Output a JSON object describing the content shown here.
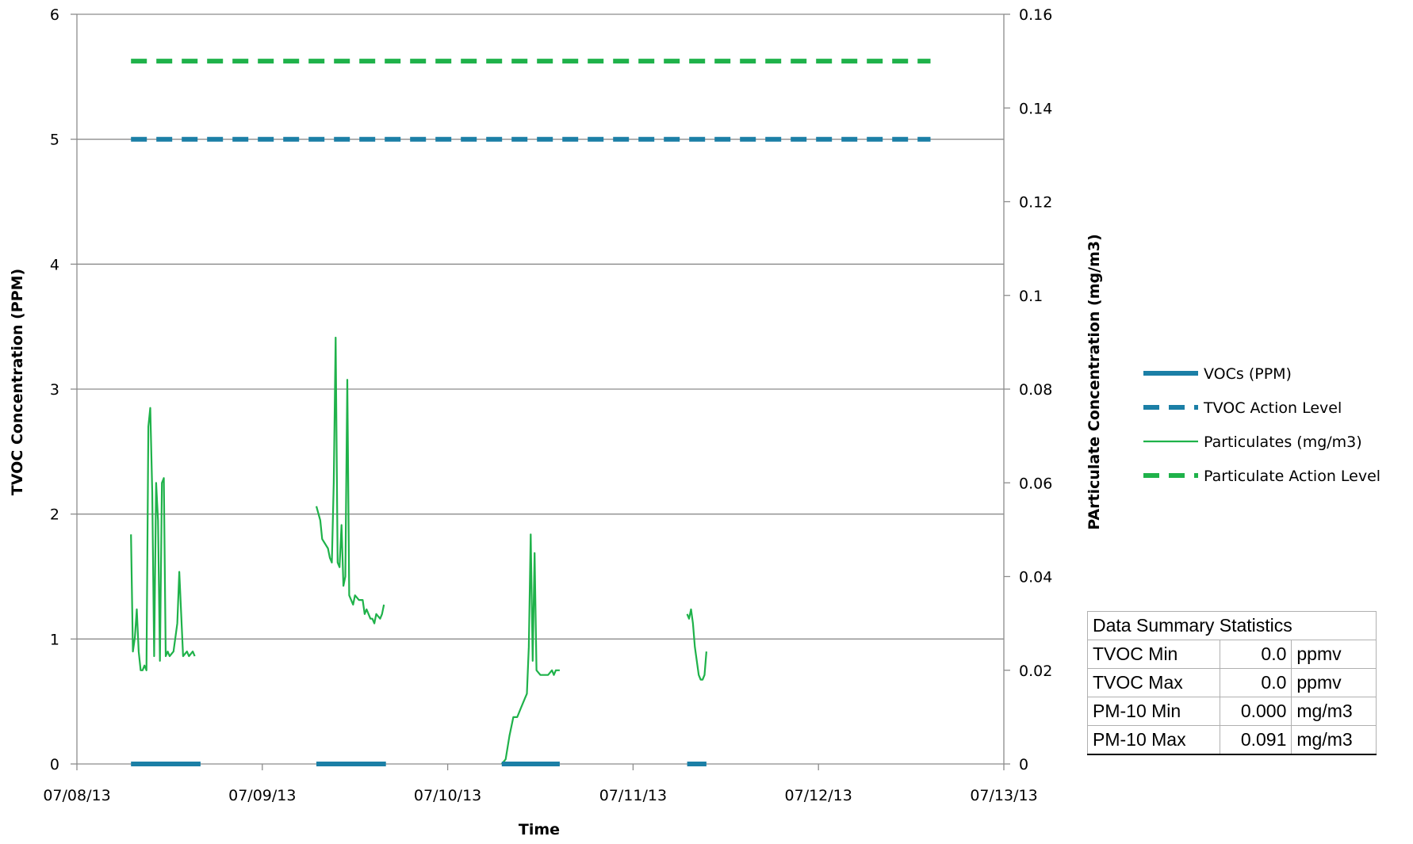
{
  "chart_data": {
    "type": "line",
    "xlabel": "Time",
    "ylabel_left": "TVOC Concentration (PPM)",
    "ylabel_right": "PArticulate Concentration (mg/m3)",
    "x_range": [
      "07/08/13",
      "07/13/13"
    ],
    "x_tick_labels": [
      "07/08/13",
      "07/09/13",
      "07/10/13",
      "07/11/13",
      "07/12/13",
      "07/13/13"
    ],
    "y_left_range": [
      0,
      6
    ],
    "y_left_ticks": [
      "0",
      "1",
      "2",
      "3",
      "4",
      "5",
      "6"
    ],
    "y_right_range": [
      0,
      0.16
    ],
    "y_right_ticks": [
      "0",
      "0.02",
      "0.04",
      "0.06",
      "0.08",
      "0.1",
      "0.12",
      "0.14",
      "0.16"
    ],
    "grid": "horizontal",
    "legend_position": "right",
    "series": [
      {
        "name": "VOCs (PPM)",
        "axis": "left",
        "style": "solid-thick",
        "color": "#1b7fa6",
        "segments": [
          [
            [
              "07/08/13 07:00",
              0
            ],
            [
              "07/08/13 16:00",
              0
            ]
          ],
          [
            [
              "07/09/13 07:00",
              0
            ],
            [
              "07/09/13 16:00",
              0
            ]
          ],
          [
            [
              "07/10/13 07:00",
              0
            ],
            [
              "07/10/13 14:30",
              0
            ]
          ],
          [
            [
              "07/11/13 07:00",
              0
            ],
            [
              "07/11/13 09:30",
              0
            ]
          ]
        ]
      },
      {
        "name": "TVOC Action Level",
        "axis": "left",
        "style": "dashed",
        "color": "#1b7fa6",
        "segments": [
          [
            [
              "07/08/13 07:00",
              5
            ],
            [
              "07/12/13 14:30",
              5
            ]
          ]
        ]
      },
      {
        "name": "Particulates (mg/m3)",
        "axis": "right",
        "style": "solid-thin",
        "color": "#1fb24a",
        "segments": [
          [
            [
              "07/08/13 07:00",
              0.049
            ],
            [
              "07/08/13 07:15",
              0.024
            ],
            [
              "07/08/13 07:30",
              0.027
            ],
            [
              "07/08/13 07:45",
              0.033
            ],
            [
              "07/08/13 08:00",
              0.024
            ],
            [
              "07/08/13 08:15",
              0.02
            ],
            [
              "07/08/13 08:30",
              0.02
            ],
            [
              "07/08/13 08:45",
              0.021
            ],
            [
              "07/08/13 09:00",
              0.02
            ],
            [
              "07/08/13 09:15",
              0.072
            ],
            [
              "07/08/13 09:30",
              0.076
            ],
            [
              "07/08/13 09:45",
              0.058
            ],
            [
              "07/08/13 10:00",
              0.023
            ],
            [
              "07/08/13 10:15",
              0.06
            ],
            [
              "07/08/13 10:30",
              0.052
            ],
            [
              "07/08/13 10:45",
              0.022
            ],
            [
              "07/08/13 11:00",
              0.06
            ],
            [
              "07/08/13 11:15",
              0.061
            ],
            [
              "07/08/13 11:30",
              0.023
            ],
            [
              "07/08/13 11:45",
              0.024
            ],
            [
              "07/08/13 12:00",
              0.023
            ],
            [
              "07/08/13 12:30",
              0.024
            ],
            [
              "07/08/13 13:00",
              0.03
            ],
            [
              "07/08/13 13:15",
              0.041
            ],
            [
              "07/08/13 13:45",
              0.023
            ],
            [
              "07/08/13 14:15",
              0.024
            ],
            [
              "07/08/13 14:30",
              0.023
            ],
            [
              "07/08/13 15:00",
              0.024
            ],
            [
              "07/08/13 15:15",
              0.023
            ]
          ],
          [
            [
              "07/09/13 07:00",
              0.055
            ],
            [
              "07/09/13 07:30",
              0.052
            ],
            [
              "07/09/13 07:45",
              0.048
            ],
            [
              "07/09/13 08:30",
              0.046
            ],
            [
              "07/09/13 08:45",
              0.044
            ],
            [
              "07/09/13 09:00",
              0.043
            ],
            [
              "07/09/13 09:15",
              0.06
            ],
            [
              "07/09/13 09:30",
              0.091
            ],
            [
              "07/09/13 09:45",
              0.043
            ],
            [
              "07/09/13 10:00",
              0.042
            ],
            [
              "07/09/13 10:15",
              0.051
            ],
            [
              "07/09/13 10:30",
              0.038
            ],
            [
              "07/09/13 10:45",
              0.04
            ],
            [
              "07/09/13 11:00",
              0.082
            ],
            [
              "07/09/13 11:15",
              0.036
            ],
            [
              "07/09/13 11:45",
              0.034
            ],
            [
              "07/09/13 12:00",
              0.036
            ],
            [
              "07/09/13 12:30",
              0.035
            ],
            [
              "07/09/13 13:00",
              0.035
            ],
            [
              "07/09/13 13:15",
              0.032
            ],
            [
              "07/09/13 13:30",
              0.033
            ],
            [
              "07/09/13 14:00",
              0.031
            ],
            [
              "07/09/13 14:15",
              0.031
            ],
            [
              "07/09/13 14:30",
              0.03
            ],
            [
              "07/09/13 14:45",
              0.032
            ],
            [
              "07/09/13 15:15",
              0.031
            ],
            [
              "07/09/13 15:30",
              0.032
            ],
            [
              "07/09/13 15:45",
              0.034
            ]
          ],
          [
            [
              "07/10/13 07:00",
              0.0
            ],
            [
              "07/10/13 07:30",
              0.001
            ],
            [
              "07/10/13 08:00",
              0.006
            ],
            [
              "07/10/13 08:30",
              0.01
            ],
            [
              "07/10/13 09:00",
              0.01
            ],
            [
              "07/10/13 09:30",
              0.012
            ],
            [
              "07/10/13 10:00",
              0.014
            ],
            [
              "07/10/13 10:15",
              0.015
            ],
            [
              "07/10/13 10:30",
              0.025
            ],
            [
              "07/10/13 10:45",
              0.049
            ],
            [
              "07/10/13 11:00",
              0.022
            ],
            [
              "07/10/13 11:15",
              0.045
            ],
            [
              "07/10/13 11:30",
              0.02
            ],
            [
              "07/10/13 12:00",
              0.019
            ],
            [
              "07/10/13 13:00",
              0.019
            ],
            [
              "07/10/13 13:30",
              0.02
            ],
            [
              "07/10/13 13:45",
              0.019
            ],
            [
              "07/10/13 14:00",
              0.02
            ],
            [
              "07/10/13 14:30",
              0.02
            ]
          ],
          [
            [
              "07/11/13 07:00",
              0.032
            ],
            [
              "07/11/13 07:15",
              0.031
            ],
            [
              "07/11/13 07:30",
              0.033
            ],
            [
              "07/11/13 07:45",
              0.03
            ],
            [
              "07/11/13 08:00",
              0.025
            ],
            [
              "07/11/13 08:30",
              0.019
            ],
            [
              "07/11/13 08:45",
              0.018
            ],
            [
              "07/11/13 09:00",
              0.018
            ],
            [
              "07/11/13 09:15",
              0.019
            ],
            [
              "07/11/13 09:30",
              0.024
            ]
          ]
        ]
      },
      {
        "name": "Particulate Action Level",
        "axis": "right",
        "style": "dashed",
        "color": "#1fb24a",
        "segments": [
          [
            [
              "07/08/13 07:00",
              0.15
            ],
            [
              "07/12/13 14:30",
              0.15
            ]
          ]
        ]
      }
    ]
  },
  "summary": {
    "title": "Data Summary Statistics",
    "rows": [
      {
        "label": "TVOC Min",
        "value": "0.0",
        "unit": "ppmv"
      },
      {
        "label": "TVOC Max",
        "value": "0.0",
        "unit": "ppmv"
      },
      {
        "label": "PM-10 Min",
        "value": "0.000",
        "unit": "mg/m3"
      },
      {
        "label": "PM-10 Max",
        "value": "0.091",
        "unit": "mg/m3"
      }
    ]
  }
}
